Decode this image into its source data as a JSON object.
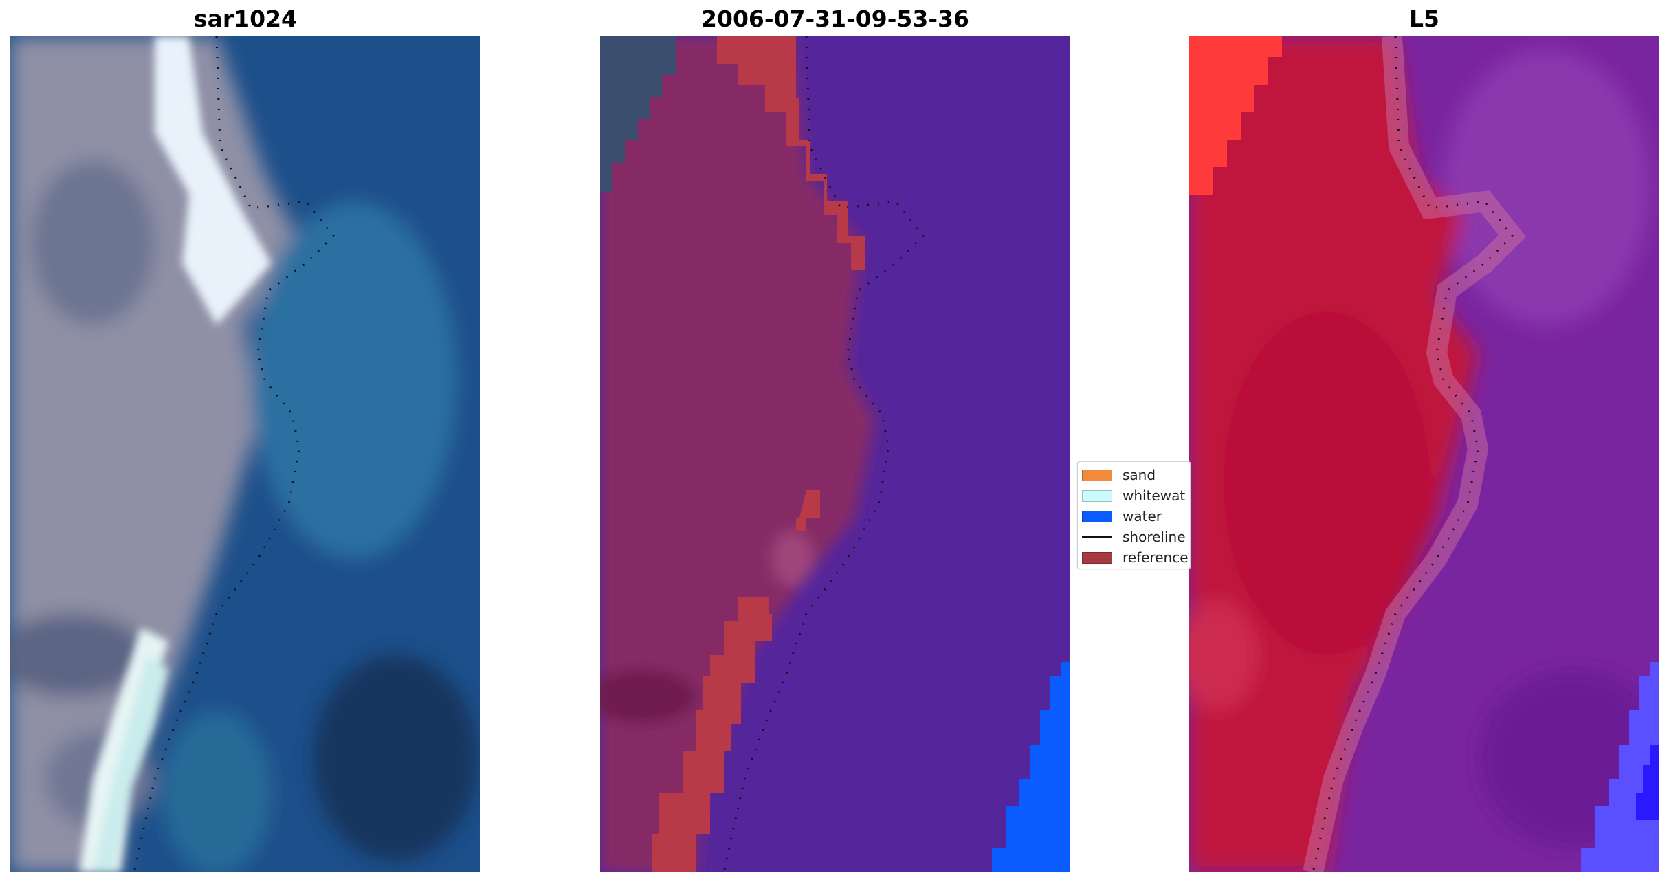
{
  "panels": [
    {
      "title": "sar1024"
    },
    {
      "title": "2006-07-31-09-53-36"
    },
    {
      "title": "L5"
    }
  ],
  "legend": [
    {
      "label": "sand",
      "color": "#f28a3c",
      "kind": "patch"
    },
    {
      "label": "whitewat",
      "color": "#ccfbfb",
      "kind": "patch"
    },
    {
      "label": "water",
      "color": "#0a5cff",
      "kind": "patch"
    },
    {
      "label": "shoreline",
      "color": "#111111",
      "kind": "line"
    },
    {
      "label": "reference",
      "color": "#a63a40",
      "kind": "patch"
    }
  ],
  "colors": {
    "sar_water": "#1f5c91",
    "sar_land": "#8a8ca3",
    "sar_whitewater": "#e6f2f8",
    "class_land": "#862a66",
    "class_water": "#55269b",
    "class_reference": "#b83a48",
    "class_water_pixels": "#0a5cff",
    "l5_land": "#c0143c",
    "l5_water": "#7a25a0",
    "l5_sand": "#ff3a3a",
    "l5_water_pixels": "#4a3cff"
  }
}
